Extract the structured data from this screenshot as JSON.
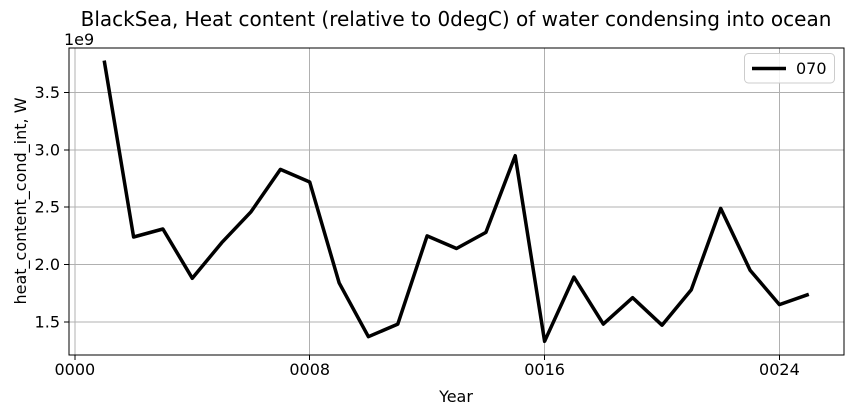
{
  "figure": {
    "background_color": "#ffffff"
  },
  "chart_data": {
    "type": "line",
    "title": "BlackSea, Heat content (relative to 0degC) of water condensing into ocean",
    "xlabel": "Year",
    "ylabel": "heat_content_cond_int, W",
    "y_offset_text": "1e9",
    "values_unit": "1e9 W",
    "x": [
      1,
      2,
      3,
      4,
      5,
      6,
      7,
      8,
      9,
      10,
      11,
      12,
      13,
      14,
      15,
      16,
      17,
      18,
      19,
      20,
      21,
      22,
      23,
      24,
      25
    ],
    "series": [
      {
        "name": "070",
        "color": "#000000",
        "line_width": 3.5,
        "values": [
          3.78,
          2.24,
          2.31,
          1.88,
          2.19,
          2.46,
          2.83,
          2.72,
          1.84,
          1.37,
          1.48,
          2.25,
          2.14,
          2.28,
          2.95,
          1.33,
          1.89,
          1.48,
          1.71,
          1.47,
          1.78,
          2.49,
          1.95,
          1.65,
          1.74
        ]
      }
    ],
    "xlim": [
      -0.2,
      26.2
    ],
    "ylim": [
      1.21,
      3.89
    ],
    "xticks": {
      "values": [
        0,
        8,
        16,
        24
      ],
      "labels": [
        "0000",
        "0008",
        "0016",
        "0024"
      ]
    },
    "yticks": {
      "values": [
        1.5,
        2.0,
        2.5,
        3.0,
        3.5
      ],
      "labels": [
        "1.5",
        "2.0",
        "2.5",
        "3.0",
        "3.5"
      ]
    },
    "grid": true,
    "grid_color": "#b0b0b0",
    "spine_color": "#000000",
    "legend": {
      "position": "upper right",
      "entries": [
        "070"
      ],
      "border_color": "#cccccc"
    }
  }
}
